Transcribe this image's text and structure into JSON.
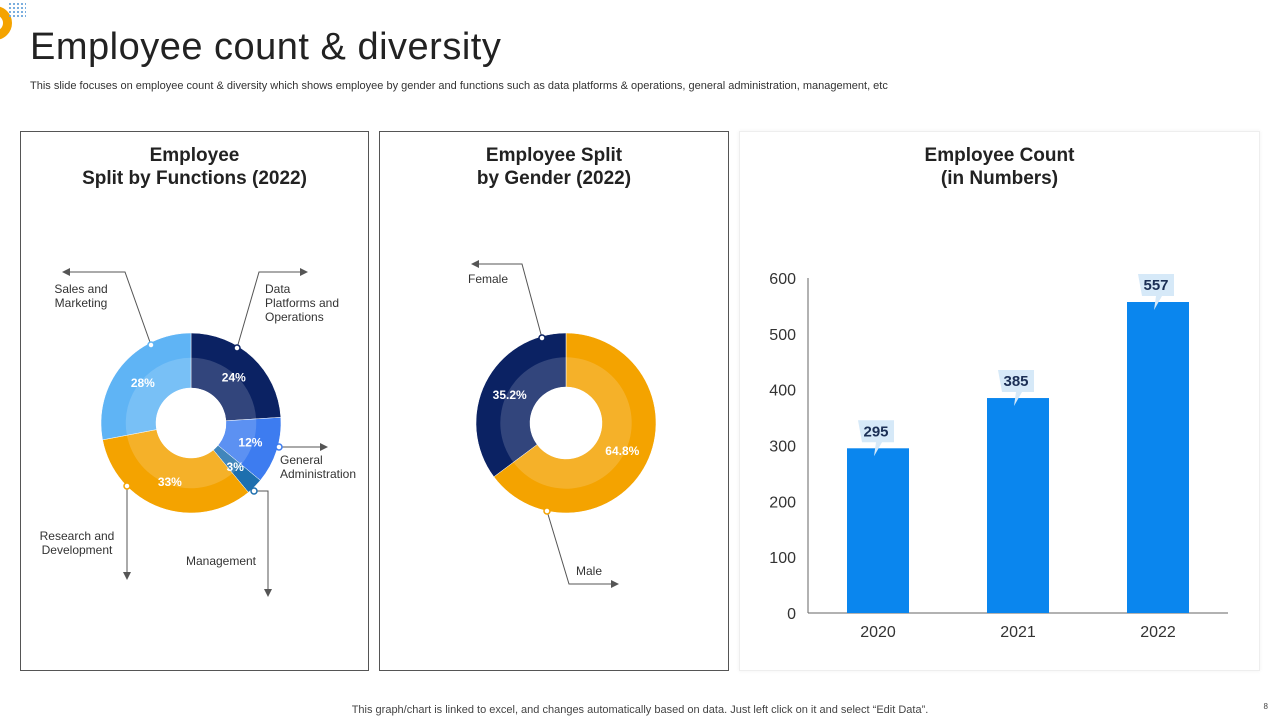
{
  "slide": {
    "title": "Employee count & diversity",
    "subtitle": "This slide focuses on employee count & diversity which shows employee by gender and functions such as data platforms & operations, general administration, management, etc",
    "footer": "This graph/chart is linked to excel,  and changes automatically based on data. Just left click on it and select “Edit Data”.",
    "page_number": "8"
  },
  "colors": {
    "navy": "#0b2263",
    "light_blue": "#5fb4f5",
    "orange": "#f4a300",
    "royal_blue": "#3d7cf0",
    "teal_blue": "#1d6fae",
    "bar_blue": "#0a86ee",
    "callout_bg": "#d6e9f8"
  },
  "chart_data": [
    {
      "type": "pie",
      "variant": "donut",
      "title_line1": "Employee",
      "title_line2": "Split by Functions (2022)",
      "slices": [
        {
          "label": "Data Platforms and Operations",
          "value": 24,
          "display": "24%",
          "color": "#0b2263"
        },
        {
          "label": "General Administration",
          "value": 12,
          "display": "12%",
          "color": "#3d7cf0"
        },
        {
          "label": "Management",
          "value": 3,
          "display": "3%",
          "color": "#1d6fae"
        },
        {
          "label": "Research and Development",
          "value": 33,
          "display": "33%",
          "color": "#f4a300"
        },
        {
          "label": "Sales and Marketing",
          "value": 28,
          "display": "28%",
          "color": "#5fb4f5"
        }
      ],
      "callouts": {
        "sales": [
          "Sales and",
          "Marketing"
        ],
        "data": [
          "Data",
          "Platforms and",
          "Operations"
        ],
        "admin": [
          "General",
          "Administration"
        ],
        "management": [
          "Management"
        ],
        "research": [
          "Research and",
          "Development"
        ]
      }
    },
    {
      "type": "pie",
      "variant": "donut",
      "title_line1": "Employee Split",
      "title_line2": "by Gender (2022)",
      "slices": [
        {
          "label": "Male",
          "value": 64.8,
          "display": "64.8%",
          "color": "#f4a300"
        },
        {
          "label": "Female",
          "value": 35.2,
          "display": "35.2%",
          "color": "#0b2263"
        }
      ]
    },
    {
      "type": "bar",
      "title_line1": "Employee Count",
      "title_line2": "(in Numbers)",
      "categories": [
        "2020",
        "2021",
        "2022"
      ],
      "values": [
        295,
        385,
        557
      ],
      "value_labels": [
        "295",
        "385",
        "557"
      ],
      "ylim": [
        0,
        600
      ],
      "yticks": [
        "0",
        "100",
        "200",
        "300",
        "400",
        "500",
        "600"
      ],
      "color": "#0a86ee"
    }
  ]
}
